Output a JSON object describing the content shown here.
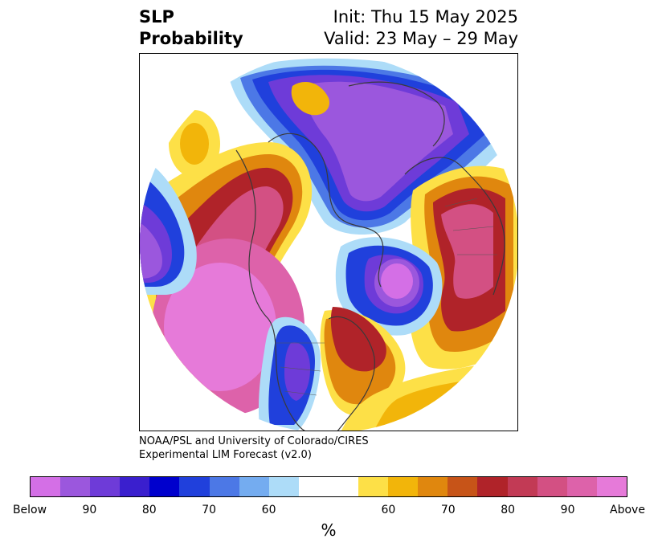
{
  "title": {
    "left_line1": "SLP",
    "left_line2": "Probability",
    "right_line1": "Init: Thu 15 May 2025",
    "right_line2": "Valid: 23 May – 29 May"
  },
  "credit": {
    "line1": "NOAA/PSL and University of Colorado/CIRES",
    "line2": "Experimental LIM Forecast (v2.0)"
  },
  "colorbar": {
    "unit_label": "%",
    "colors": [
      "#d46fe6",
      "#9b57dd",
      "#6e3bd8",
      "#3a1fce",
      "#0000cd",
      "#2040dc",
      "#4c78e6",
      "#74acf0",
      "#addcf8",
      "#ffffff",
      "#ffffff",
      "#fde047",
      "#f2b50a",
      "#e0870e",
      "#c75418",
      "#b02329",
      "#c23a55",
      "#d35083",
      "#dd62aa",
      "#e67ad9"
    ],
    "tick_labels": [
      "Below",
      "90",
      "80",
      "70",
      "60",
      "60",
      "70",
      "80",
      "90",
      "Above"
    ]
  },
  "map": {
    "projection": "north polar stereographic",
    "field": "sea level pressure tercile probability"
  }
}
